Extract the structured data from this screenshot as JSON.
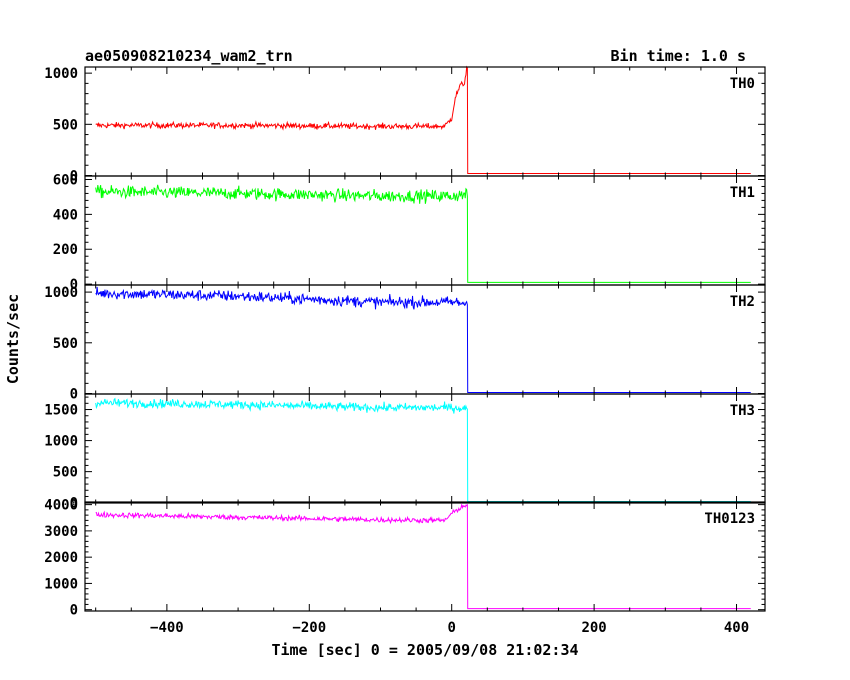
{
  "header": {
    "title": "ae050908210234_wam2_trn",
    "bin_time": "Bin time: 1.0 s"
  },
  "axes": {
    "xlabel": "Time [sec] 0 = 2005/09/08 21:02:34",
    "ylabel": "Counts/sec"
  },
  "chart_data": {
    "type": "line",
    "title": "ae050908210234_wam2_trn",
    "subtitle": "Bin time: 1.0 s",
    "xlabel": "Time [sec] 0 = 2005/09/08 21:02:34",
    "ylabel": "Counts/sec",
    "xlim": [
      -515,
      440
    ],
    "x_ticks": [
      -400,
      -200,
      0,
      200,
      400
    ],
    "x_ticklabels": [
      "−400",
      "−200",
      "0",
      "200",
      "400"
    ],
    "grid": false,
    "panels": [
      {
        "name": "TH0",
        "color": "#ff0000",
        "ylim": [
          -5,
          1060
        ],
        "y_ticks": [
          0,
          500,
          1000
        ],
        "y_ticklabels": [
          "0",
          "500",
          "1000"
        ],
        "x_start": -500,
        "x_end": 420,
        "drop_time": 22,
        "profile": [
          [
            -500,
            490
          ],
          [
            -300,
            490
          ],
          [
            -100,
            480
          ],
          [
            -10,
            480
          ],
          [
            0,
            560
          ],
          [
            5,
            760
          ],
          [
            12,
            880
          ],
          [
            18,
            900
          ],
          [
            21,
            1060
          ]
        ],
        "noise": 14,
        "post_level": 20
      },
      {
        "name": "TH1",
        "color": "#00ff00",
        "ylim": [
          -5,
          620
        ],
        "y_ticks": [
          0,
          200,
          400,
          600
        ],
        "y_ticklabels": [
          "0",
          "200",
          "400",
          "600"
        ],
        "x_start": -500,
        "x_end": 420,
        "drop_time": 22,
        "profile": [
          [
            -500,
            530
          ],
          [
            -300,
            520
          ],
          [
            -100,
            505
          ],
          [
            0,
            505
          ],
          [
            20,
            515
          ]
        ],
        "noise": 18,
        "post_level": 10
      },
      {
        "name": "TH2",
        "color": "#0000ff",
        "ylim": [
          -5,
          1070
        ],
        "y_ticks": [
          0,
          500,
          1000
        ],
        "y_ticklabels": [
          "0",
          "500",
          "1000"
        ],
        "x_start": -500,
        "x_end": 420,
        "drop_time": 22,
        "profile": [
          [
            -500,
            990
          ],
          [
            -300,
            960
          ],
          [
            -100,
            900
          ],
          [
            0,
            900
          ],
          [
            20,
            890
          ]
        ],
        "noise": 28,
        "post_level": 10
      },
      {
        "name": "TH3",
        "color": "#00ffff",
        "ylim": [
          -5,
          1750
        ],
        "y_ticks": [
          0,
          500,
          1000,
          1500
        ],
        "y_ticklabels": [
          "0",
          "500",
          "1000",
          "1500"
        ],
        "x_start": -500,
        "x_end": 420,
        "drop_time": 22,
        "profile": [
          [
            -500,
            1610
          ],
          [
            -300,
            1580
          ],
          [
            -100,
            1530
          ],
          [
            0,
            1530
          ],
          [
            20,
            1520
          ]
        ],
        "noise": 35,
        "post_level": 20
      },
      {
        "name": "TH0123",
        "color": "#ff00ff",
        "ylim": [
          -50,
          4100
        ],
        "y_ticks": [
          0,
          1000,
          2000,
          3000,
          4000
        ],
        "y_ticklabels": [
          "0",
          "1000",
          "2000",
          "3000",
          "4000"
        ],
        "x_start": -500,
        "x_end": 420,
        "drop_time": 22,
        "profile": [
          [
            -500,
            3620
          ],
          [
            -300,
            3520
          ],
          [
            -100,
            3420
          ],
          [
            -10,
            3400
          ],
          [
            0,
            3650
          ],
          [
            10,
            3850
          ],
          [
            21,
            4000
          ]
        ],
        "noise": 50,
        "post_level": 40
      }
    ]
  }
}
